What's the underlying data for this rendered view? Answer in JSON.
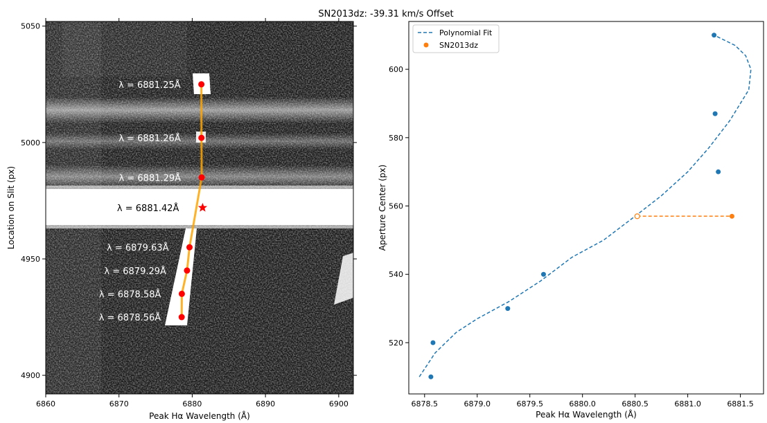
{
  "figure": {
    "title": "SN2013dz: -39.31 km/s Offset"
  },
  "chart_data": [
    {
      "type": "image",
      "xlabel": "Peak Hα Wavelength (Å)",
      "ylabel": "Location on Slit (px)",
      "xlim": [
        6860,
        6902
      ],
      "ylim": [
        4892,
        5052
      ],
      "x_ticks": [
        6860,
        6870,
        6880,
        6890,
        6900
      ],
      "y_ticks": [
        4900,
        4950,
        5000,
        5050
      ],
      "background": "grayscale 2D spectrum",
      "trace_points": [
        {
          "x": 6881.25,
          "y": 5025,
          "label": "λ = 6881.25Å"
        },
        {
          "x": 6881.26,
          "y": 5002,
          "label": "λ = 6881.26Å"
        },
        {
          "x": 6881.29,
          "y": 4985,
          "label": "λ = 6881.29Å"
        },
        {
          "x": 6879.63,
          "y": 4955,
          "label": "λ = 6879.63Å"
        },
        {
          "x": 6879.29,
          "y": 4945,
          "label": "λ = 6879.29Å"
        },
        {
          "x": 6878.58,
          "y": 4935,
          "label": "λ = 6878.58Å"
        },
        {
          "x": 6878.56,
          "y": 4925,
          "label": "λ = 6878.56Å"
        }
      ],
      "star": {
        "x": 6881.42,
        "y": 4972,
        "label": "λ = 6881.42Å"
      },
      "colors": {
        "points": "#ff0000",
        "trace": "#ffa500"
      }
    },
    {
      "type": "scatter",
      "xlabel": "Peak Hα Wavelength (Å)",
      "ylabel": "Aperture Center (px)",
      "xlim": [
        6878.35,
        6881.72
      ],
      "ylim": [
        505,
        614
      ],
      "x_ticks": [
        6878.5,
        6879.0,
        6879.5,
        6880.0,
        6880.5,
        6881.0,
        6881.5
      ],
      "y_ticks": [
        520,
        540,
        560,
        580,
        600
      ],
      "legend": {
        "position": "upper left",
        "entries": [
          "Polynomial Fit",
          "SN2013dz"
        ]
      },
      "series": [
        {
          "name": "Polynomial Fit",
          "type": "line",
          "style": "dashed",
          "color": "#1f77b4",
          "x": [
            6878.45,
            6878.6,
            6878.8,
            6879.0,
            6879.3,
            6879.6,
            6879.9,
            6880.2,
            6880.5,
            6880.75,
            6881.0,
            6881.2,
            6881.4,
            6881.58,
            6881.6,
            6881.55,
            6881.45,
            6881.25
          ],
          "y": [
            510,
            517,
            523,
            527,
            532,
            538,
            545,
            550,
            557,
            563,
            570,
            577,
            585,
            594,
            600,
            604,
            607,
            610
          ]
        },
        {
          "name": "",
          "type": "scatter",
          "color": "#1f77b4",
          "x": [
            6878.56,
            6878.58,
            6879.29,
            6879.63,
            6881.29,
            6881.26,
            6881.25
          ],
          "y": [
            510,
            520,
            530,
            540,
            570,
            587,
            610
          ]
        },
        {
          "name": "SN2013dz",
          "type": "scatter",
          "color": "#ff7f0e",
          "x": [
            6881.42
          ],
          "y": [
            557
          ]
        },
        {
          "name": "",
          "type": "line",
          "style": "dashed",
          "color": "#ff7f0e",
          "x": [
            6880.52,
            6881.42
          ],
          "y": [
            557,
            557
          ]
        },
        {
          "name": "",
          "type": "scatter",
          "marker": "open",
          "color": "#ff7f0e",
          "x": [
            6880.52
          ],
          "y": [
            557
          ]
        }
      ]
    }
  ]
}
